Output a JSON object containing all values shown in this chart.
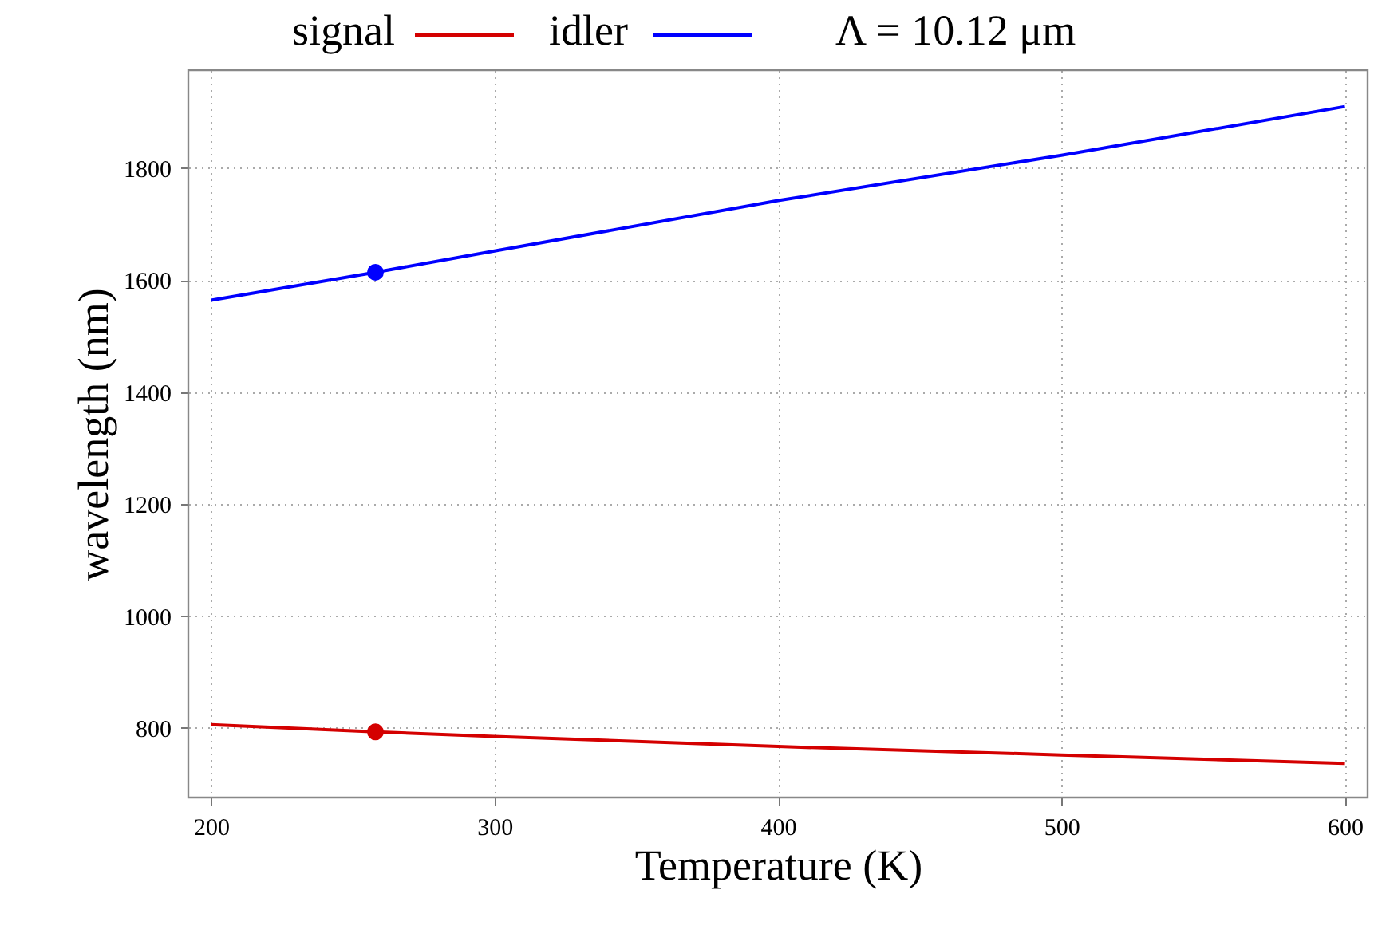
{
  "chart_data": {
    "type": "line",
    "xlabel": "Temperature (K)",
    "ylabel": "wavelength (nm)",
    "xlim": [
      192,
      608
    ],
    "xticks": [
      200,
      300,
      400,
      500,
      600
    ],
    "ylim": [
      676,
      1975
    ],
    "yticks": [
      800,
      1000,
      1200,
      1400,
      1600,
      1800
    ],
    "grid": true,
    "legend": "top",
    "line_style": "solid",
    "annotations": [
      "Λ = 10.12 μm"
    ],
    "series": [
      {
        "name": "signal",
        "color": "#d40000",
        "x": [
          200,
          258,
          300,
          400,
          500,
          600
        ],
        "values": [
          806,
          793,
          785,
          767,
          752,
          737
        ]
      },
      {
        "name": "idler",
        "color": "#0000ff",
        "x": [
          200,
          258,
          300,
          400,
          500,
          600
        ],
        "values": [
          1564,
          1614,
          1652,
          1742,
          1823,
          1910
        ]
      },
      {
        "type": "scatter",
        "marker": "circle",
        "color": "#d40000",
        "x": [
          258
        ],
        "values": [
          793
        ]
      },
      {
        "type": "scatter",
        "marker": "circle",
        "color": "#0000ff",
        "x": [
          258
        ],
        "values": [
          1614
        ]
      }
    ]
  }
}
